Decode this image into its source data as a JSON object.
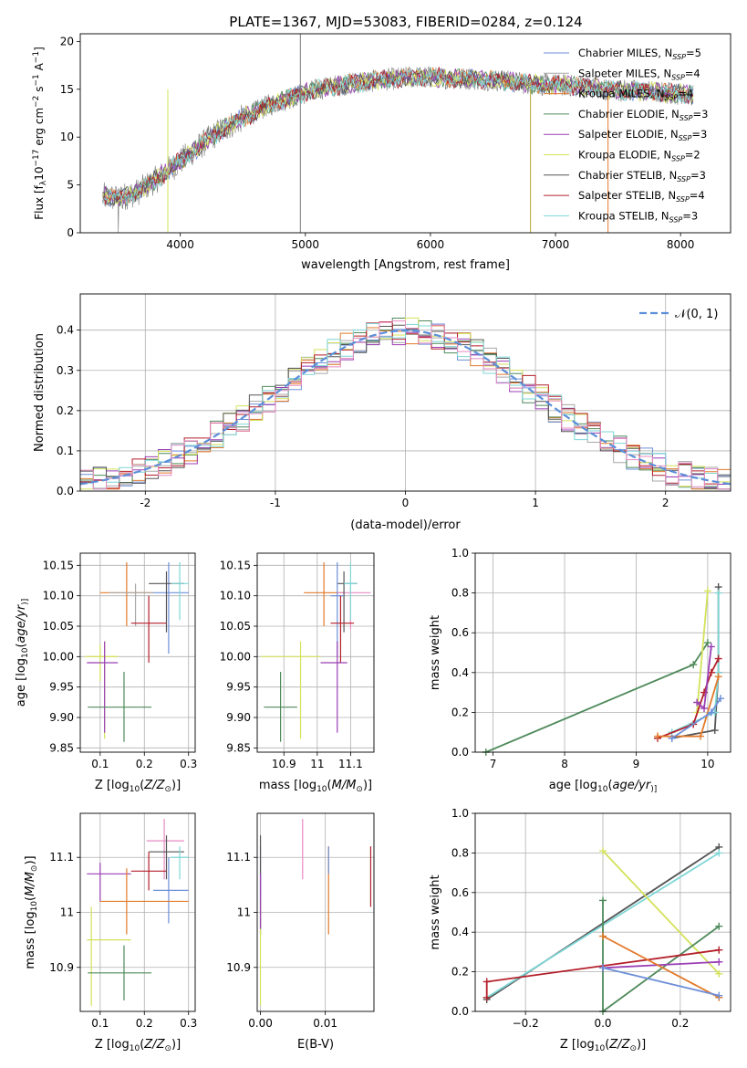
{
  "figure": {
    "title": "PLATE=1367, MJD=53083, FIBERID=0284, z=0.124"
  },
  "chart_data": [
    {
      "id": "spectrum",
      "type": "line",
      "title": "PLATE=1367, MJD=53083, FIBERID=0284, z=0.124",
      "xlabel": "wavelength [Angstrom, rest frame]",
      "ylabel": "Flux [f$_\\lambda$10$^{-17}$ erg cm$^{-2}$ s$^{-1}$ A$^{-1}$]",
      "ylabel_parts": [
        "Flux [f",
        "λ",
        "10",
        "−17",
        " erg cm",
        "−2",
        " s",
        "−1",
        " A",
        "−1",
        "]"
      ],
      "xlim": [
        3200,
        8400
      ],
      "ylim": [
        0,
        20.8
      ],
      "xticks": [
        4000,
        5000,
        6000,
        7000,
        8000
      ],
      "yticks": [
        0,
        5,
        10,
        15,
        20
      ],
      "grid": false,
      "legend_position": "right",
      "legend": [
        {
          "name": "Chabrier MILES",
          "n": "5",
          "color": "#6d8fd9"
        },
        {
          "name": "Salpeter MILES",
          "n": "4",
          "color": "#a8a8a8"
        },
        {
          "name": "Kroupa MILES",
          "n": "4",
          "color": "#e27a2a"
        },
        {
          "name": "Chabrier ELODIE",
          "n": "3",
          "color": "#4f8a5b"
        },
        {
          "name": "Salpeter ELODIE",
          "n": "3",
          "color": "#9b3fb5"
        },
        {
          "name": "Kroupa ELODIE",
          "n": "2",
          "color": "#d4e25a"
        },
        {
          "name": "Chabrier STELIB",
          "n": "3",
          "color": "#555555"
        },
        {
          "name": "Salpeter STELIB",
          "n": "4",
          "color": "#b41f2a"
        },
        {
          "name": "Kroupa STELIB",
          "n": "3",
          "color": "#7fd6d6"
        }
      ],
      "continuum_x": [
        3380,
        3500,
        3650,
        3800,
        3950,
        4100,
        4300,
        4500,
        4700,
        4900,
        5100,
        5300,
        5500,
        5700,
        5900,
        6100,
        6300,
        6500,
        6700,
        6900,
        7100,
        7300,
        7500,
        7700,
        7900,
        8100
      ],
      "continuum_y": [
        3.8,
        3.6,
        4.2,
        5.5,
        7.0,
        8.5,
        10.5,
        12.0,
        13.3,
        14.2,
        15.0,
        15.5,
        15.8,
        16.1,
        16.3,
        16.2,
        16.1,
        16.0,
        15.7,
        15.5,
        15.4,
        15.1,
        14.9,
        14.8,
        14.6,
        14.5
      ],
      "notes_visible": "noisy observed spectrum (grey) with nine overlapping model fits"
    },
    {
      "id": "residuals",
      "type": "histogram",
      "xlabel": "(data-model)/error",
      "ylabel": "Normed distribution",
      "xlim": [
        -2.5,
        2.5
      ],
      "ylim": [
        0,
        0.49
      ],
      "xticks": [
        -2,
        -1,
        0,
        1,
        2
      ],
      "yticks": [
        0.0,
        0.1,
        0.2,
        0.3,
        0.4
      ],
      "grid": true,
      "legend_position": "top-right",
      "reference_curve": {
        "label": "𝒩(0, 1)",
        "mean": 0,
        "sigma": 1,
        "color": "#5b8fd9",
        "style": "dashed"
      },
      "bin_width": 0.1,
      "series": [
        {
          "name": "Chabrier MILES",
          "color": "#6d8fd9"
        },
        {
          "name": "Salpeter MILES",
          "color": "#a8a8a8"
        },
        {
          "name": "Kroupa MILES",
          "color": "#e27a2a"
        },
        {
          "name": "Chabrier ELODIE",
          "color": "#4f8a5b"
        },
        {
          "name": "Salpeter ELODIE",
          "color": "#9b3fb5"
        },
        {
          "name": "Kroupa ELODIE",
          "color": "#d4e25a"
        },
        {
          "name": "Chabrier STELIB",
          "color": "#555555"
        },
        {
          "name": "Salpeter STELIB",
          "color": "#b41f2a"
        },
        {
          "name": "Kroupa STELIB",
          "color": "#7fd6d6"
        },
        {
          "name": "pink",
          "color": "#e78ac3"
        }
      ]
    },
    {
      "id": "age_vs_Z",
      "type": "errorbar",
      "xlabel_parts": [
        "Z [log",
        "10",
        "(",
        "Z/Z",
        "⊙",
        ")]"
      ],
      "ylabel_parts": [
        "age  [log",
        "10",
        "(",
        "age/yr",
        ")]"
      ],
      "xlim": [
        0.055,
        0.315
      ],
      "ylim": [
        9.843,
        10.17
      ],
      "xticks": [
        0.1,
        0.2,
        0.3
      ],
      "yticks": [
        9.85,
        9.9,
        9.95,
        10.0,
        10.05,
        10.1,
        10.15
      ],
      "ytick_labels": [
        "9.85",
        "9.90",
        "9.95",
        "10.00",
        "10.05",
        "10.10",
        "10.15"
      ],
      "grid": true,
      "points": [
        {
          "x": 0.16,
          "xerr": [
            0.1,
            0.22
          ],
          "y": 10.105,
          "yerr": [
            10.05,
            10.155
          ],
          "color": "#e27a2a"
        },
        {
          "x": 0.18,
          "xerr": [
            0.12,
            0.22
          ],
          "y": 10.105,
          "yerr": [
            10.05,
            10.12
          ],
          "color": "#a8a8a8"
        },
        {
          "x": 0.255,
          "xerr": [
            0.22,
            0.3
          ],
          "y": 10.105,
          "yerr": [
            10.005,
            10.155
          ],
          "color": "#6d8fd9"
        },
        {
          "x": 0.25,
          "xerr": [
            0.21,
            0.29
          ],
          "y": 10.12,
          "yerr": [
            10.04,
            10.14
          ],
          "color": "#555555"
        },
        {
          "x": 0.28,
          "xerr": [
            0.26,
            0.3
          ],
          "y": 10.12,
          "yerr": [
            10.06,
            10.155
          ],
          "color": "#7fd6d6"
        },
        {
          "x": 0.21,
          "xerr": [
            0.17,
            0.25
          ],
          "y": 10.055,
          "yerr": [
            9.99,
            10.1
          ],
          "color": "#b41f2a"
        },
        {
          "x": 0.11,
          "xerr": [
            0.065,
            0.14
          ],
          "y": 10.0,
          "yerr": [
            9.865,
            10.025
          ],
          "color": "#d4e25a"
        },
        {
          "x": 0.1,
          "xerr": [
            0.08,
            0.14
          ],
          "y": 10.0,
          "yerr": [
            9.96,
            10.02
          ],
          "color": "#d4e25a"
        },
        {
          "x": 0.11,
          "xerr": [
            0.07,
            0.14
          ],
          "y": 9.99,
          "yerr": [
            9.875,
            10.025
          ],
          "color": "#9b3fb5"
        },
        {
          "x": 0.154,
          "xerr": [
            0.072,
            0.216
          ],
          "y": 9.917,
          "yerr": [
            9.86,
            9.975
          ],
          "color": "#4f8a5b"
        }
      ]
    },
    {
      "id": "age_vs_mass",
      "type": "errorbar",
      "xlabel_parts": [
        "mass [log",
        "10",
        "(",
        "M/M",
        "⊙",
        ")]"
      ],
      "ylabel_parts": [],
      "xlim": [
        10.82,
        11.17
      ],
      "ylim": [
        9.843,
        10.17
      ],
      "xticks": [
        10.9,
        11.0,
        11.1
      ],
      "yticks": [
        9.85,
        9.9,
        9.95,
        10.0,
        10.05,
        10.1,
        10.15
      ],
      "ytick_labels": [
        "9.85",
        "9.90",
        "9.95",
        "10.00",
        "10.05",
        "10.10",
        "10.15"
      ],
      "grid": true,
      "points": [
        {
          "x": 11.02,
          "xerr": [
            10.96,
            11.08
          ],
          "y": 10.105,
          "yerr": [
            10.05,
            10.155
          ],
          "color": "#e27a2a"
        },
        {
          "x": 11.1,
          "xerr": [
            11.06,
            11.16
          ],
          "y": 10.105,
          "yerr": [
            10.045,
            10.115
          ],
          "color": "#e78ac3"
        },
        {
          "x": 11.08,
          "xerr": [
            11.06,
            11.12
          ],
          "y": 10.12,
          "yerr": [
            10.04,
            10.14
          ],
          "color": "#555555"
        },
        {
          "x": 11.06,
          "xerr": [
            11.04,
            11.08
          ],
          "y": 10.1,
          "yerr": [
            10.0,
            10.155
          ],
          "color": "#6d8fd9"
        },
        {
          "x": 11.1,
          "xerr": [
            11.08,
            11.12
          ],
          "y": 10.12,
          "yerr": [
            10.06,
            10.155
          ],
          "color": "#7fd6d6"
        },
        {
          "x": 11.07,
          "xerr": [
            11.04,
            11.11
          ],
          "y": 10.055,
          "yerr": [
            9.99,
            10.1
          ],
          "color": "#b41f2a"
        },
        {
          "x": 10.95,
          "xerr": [
            10.83,
            11.01
          ],
          "y": 10.0,
          "yerr": [
            9.865,
            10.025
          ],
          "color": "#d4e25a"
        },
        {
          "x": 11.06,
          "xerr": [
            11.01,
            11.09
          ],
          "y": 9.99,
          "yerr": [
            9.875,
            10.025
          ],
          "color": "#9b3fb5"
        },
        {
          "x": 10.89,
          "xerr": [
            10.84,
            10.94
          ],
          "y": 9.917,
          "yerr": [
            9.86,
            9.975
          ],
          "color": "#4f8a5b"
        }
      ]
    },
    {
      "id": "massweight_vs_age",
      "type": "line",
      "xlabel_parts": [
        "age  [log",
        "10",
        "(",
        "age/yr",
        ")]"
      ],
      "ylabel": "mass weight",
      "xlim": [
        6.75,
        10.32
      ],
      "ylim": [
        0,
        1.0
      ],
      "xticks": [
        7,
        8,
        9,
        10
      ],
      "yticks": [
        0.0,
        0.2,
        0.4,
        0.6,
        0.8,
        1.0
      ],
      "grid": true,
      "series": [
        {
          "name": "Chabrier ELODIE",
          "color": "#4f8a5b",
          "x": [
            6.9,
            9.8,
            10.0
          ],
          "y": [
            0.0,
            0.44,
            0.55
          ]
        },
        {
          "name": "Chabrier STELIB",
          "color": "#555555",
          "x": [
            9.5,
            10.1,
            10.15,
            10.15
          ],
          "y": [
            0.07,
            0.11,
            0.4,
            0.83
          ]
        },
        {
          "name": "Kroupa STELIB",
          "color": "#7fd6d6",
          "x": [
            9.5,
            10.1,
            10.15,
            10.15
          ],
          "y": [
            0.1,
            0.2,
            0.4,
            0.8
          ]
        },
        {
          "name": "Kroupa ELODIE",
          "color": "#d4e25a",
          "x": [
            9.85,
            10.0
          ],
          "y": [
            0.2,
            0.81
          ]
        },
        {
          "name": "Salpeter STELIB",
          "color": "#b41f2a",
          "x": [
            9.3,
            9.8,
            9.95,
            10.05,
            10.15
          ],
          "y": [
            0.07,
            0.14,
            0.3,
            0.4,
            0.47
          ]
        },
        {
          "name": "Salpeter ELODIE",
          "color": "#9b3fb5",
          "x": [
            9.85,
            9.95,
            10.05
          ],
          "y": [
            0.25,
            0.22,
            0.53
          ]
        },
        {
          "name": "Kroupa MILES",
          "color": "#e27a2a",
          "x": [
            9.3,
            9.9,
            10.15
          ],
          "y": [
            0.08,
            0.08,
            0.38
          ]
        },
        {
          "name": "Chabrier MILES",
          "color": "#6d8fd9",
          "x": [
            9.5,
            10.05,
            10.18
          ],
          "y": [
            0.07,
            0.2,
            0.27
          ]
        }
      ]
    },
    {
      "id": "mass_vs_Z",
      "type": "errorbar",
      "xlabel_parts": [
        "Z [log",
        "10",
        "(",
        "Z/Z",
        "⊙",
        ")]"
      ],
      "ylabel_parts": [
        "mass [log",
        "10",
        "(",
        "M/M",
        "⊙",
        ")]"
      ],
      "xlim": [
        0.055,
        0.315
      ],
      "ylim": [
        10.82,
        11.18
      ],
      "xticks": [
        0.1,
        0.2,
        0.3
      ],
      "yticks": [
        10.9,
        11.0,
        11.1
      ],
      "grid": true,
      "points": [
        {
          "x": 0.245,
          "xerr": [
            0.205,
            0.29
          ],
          "y": 11.13,
          "yerr": [
            11.06,
            11.17
          ],
          "color": "#e78ac3"
        },
        {
          "x": 0.25,
          "xerr": [
            0.21,
            0.29
          ],
          "y": 11.11,
          "yerr": [
            11.06,
            11.14
          ],
          "color": "#555555"
        },
        {
          "x": 0.28,
          "xerr": [
            0.26,
            0.3
          ],
          "y": 11.1,
          "yerr": [
            11.06,
            11.12
          ],
          "color": "#7fd6d6"
        },
        {
          "x": 0.1,
          "xerr": [
            0.07,
            0.17
          ],
          "y": 11.07,
          "yerr": [
            11.02,
            11.09
          ],
          "color": "#9b3fb5"
        },
        {
          "x": 0.21,
          "xerr": [
            0.17,
            0.25
          ],
          "y": 11.075,
          "yerr": [
            11.04,
            11.11
          ],
          "color": "#b41f2a"
        },
        {
          "x": 0.255,
          "xerr": [
            0.22,
            0.3
          ],
          "y": 11.04,
          "yerr": [
            10.98,
            11.1
          ],
          "color": "#6d8fd9"
        },
        {
          "x": 0.16,
          "xerr": [
            0.1,
            0.3
          ],
          "y": 11.02,
          "yerr": [
            10.96,
            11.08
          ],
          "color": "#e27a2a"
        },
        {
          "x": 0.08,
          "xerr": [
            0.07,
            0.17
          ],
          "y": 10.95,
          "yerr": [
            10.83,
            11.01
          ],
          "color": "#d4e25a"
        },
        {
          "x": 0.154,
          "xerr": [
            0.072,
            0.216
          ],
          "y": 10.89,
          "yerr": [
            10.84,
            10.94
          ],
          "color": "#4f8a5b"
        }
      ]
    },
    {
      "id": "mass_vs_ebv",
      "type": "errorbar",
      "xlabel": "E(B-V)",
      "xlim": [
        -0.0005,
        0.0175
      ],
      "ylim": [
        10.82,
        11.18
      ],
      "xticks": [
        0.0,
        0.01
      ],
      "xtick_labels": [
        "0.00",
        "0.01"
      ],
      "yticks": [
        10.9,
        11.0,
        11.1
      ],
      "grid": true,
      "points": [
        {
          "x": 0.0,
          "y": 11.06,
          "yerr": [
            10.97,
            11.12
          ],
          "color": "#6d8fd9"
        },
        {
          "x": 0.0,
          "y": 11.04,
          "yerr": [
            10.96,
            11.14
          ],
          "color": "#555555"
        },
        {
          "x": 0.0,
          "y": 10.95,
          "yerr": [
            10.83,
            11.02
          ],
          "color": "#d4e25a"
        },
        {
          "x": 0.0,
          "y": 11.02,
          "yerr": [
            10.97,
            11.07
          ],
          "color": "#9b3fb5"
        },
        {
          "x": 0.0065,
          "y": 11.11,
          "yerr": [
            11.06,
            11.17
          ],
          "color": "#e78ac3"
        },
        {
          "x": 0.0105,
          "y": 11.03,
          "yerr": [
            10.96,
            11.12
          ],
          "color": "#e27a2a"
        },
        {
          "x": 0.0105,
          "y": 11.1,
          "yerr": [
            11.07,
            11.12
          ],
          "color": "#6d8fd9"
        },
        {
          "x": 0.017,
          "y": 11.07,
          "yerr": [
            11.01,
            11.12
          ],
          "color": "#b41f2a"
        }
      ]
    },
    {
      "id": "massweight_vs_Z",
      "type": "line",
      "xlabel_parts": [
        "Z [log",
        "10",
        "(",
        "Z/Z",
        "⊙",
        ")]"
      ],
      "ylabel": "mass weight",
      "xlim": [
        -0.33,
        0.33
      ],
      "ylim": [
        0,
        1.0
      ],
      "xticks": [
        -0.2,
        0.0,
        0.2
      ],
      "xtick_labels": [
        "−0.2",
        "0.0",
        "0.2"
      ],
      "yticks": [
        0.0,
        0.2,
        0.4,
        0.6,
        0.8,
        1.0
      ],
      "grid": true,
      "series": [
        {
          "name": "Chabrier STELIB",
          "color": "#555555",
          "x": [
            -0.3,
            0.3
          ],
          "y": [
            0.06,
            0.83
          ]
        },
        {
          "name": "Kroupa STELIB",
          "color": "#7fd6d6",
          "x": [
            -0.3,
            0.3
          ],
          "y": [
            0.07,
            0.8
          ]
        },
        {
          "name": "Kroupa ELODIE",
          "color": "#d4e25a",
          "x": [
            0.0,
            0.3
          ],
          "y": [
            0.81,
            0.19
          ]
        },
        {
          "name": "Chabrier ELODIE",
          "color": "#4f8a5b",
          "x": [
            0.0,
            0.0,
            0.3
          ],
          "y": [
            0.56,
            0.0,
            0.43
          ]
        },
        {
          "name": "Salpeter STELIB",
          "color": "#b41f2a",
          "x": [
            -0.3,
            -0.3,
            0.3
          ],
          "y": [
            0.07,
            0.15,
            0.31
          ]
        },
        {
          "name": "Salpeter ELODIE",
          "color": "#9b3fb5",
          "x": [
            0.0,
            0.3
          ],
          "y": [
            0.22,
            0.25
          ]
        },
        {
          "name": "Kroupa MILES",
          "color": "#e27a2a",
          "x": [
            0.0,
            0.3
          ],
          "y": [
            0.38,
            0.07
          ]
        },
        {
          "name": "Chabrier MILES",
          "color": "#6d8fd9",
          "x": [
            0.0,
            0.3
          ],
          "y": [
            0.22,
            0.08
          ]
        }
      ]
    }
  ]
}
